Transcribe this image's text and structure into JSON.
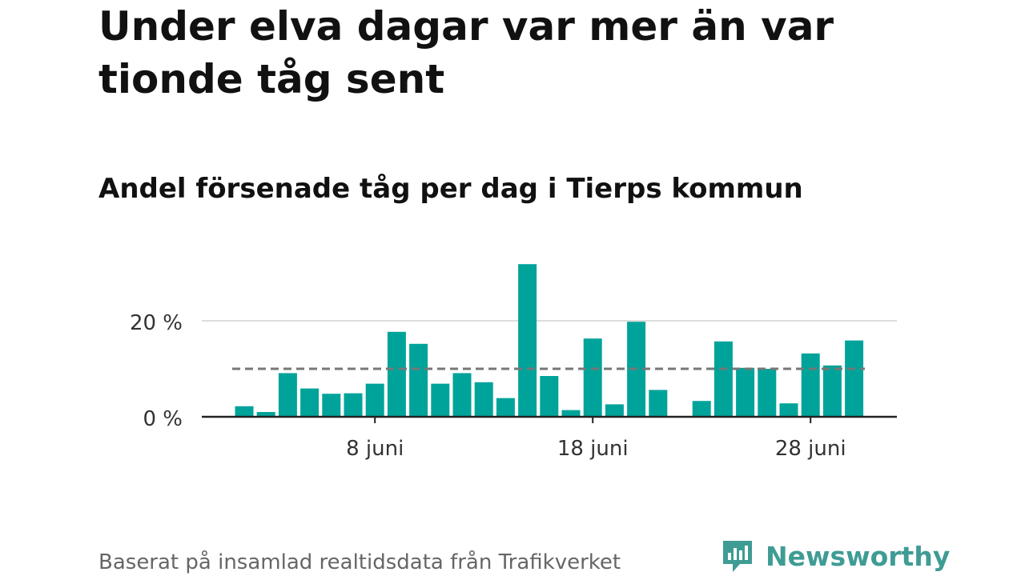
{
  "header": {
    "title": "Under elva dagar var mer än var tionde tåg sent",
    "subtitle": "Andel försenade tåg per dag i Tierps kommun"
  },
  "footer": {
    "note": "Baserat på insamlad realtidsdata från Trafikverket",
    "brand": "Newsworthy"
  },
  "colors": {
    "bar": "#00a39a",
    "reference_line": "#777777",
    "gridline": "#dddddd",
    "axis": "#222222",
    "brand": "#3f9c94"
  },
  "chart_data": {
    "type": "bar",
    "x": [
      "2 juni",
      "3 juni",
      "4 juni",
      "5 juni",
      "6 juni",
      "7 juni",
      "8 juni",
      "9 juni",
      "10 juni",
      "11 juni",
      "12 juni",
      "13 juni",
      "14 juni",
      "15 juni",
      "16 juni",
      "17 juni",
      "18 juni",
      "19 juni",
      "20 juni",
      "21 juni",
      "22 juni",
      "23 juni",
      "24 juni",
      "25 juni",
      "26 juni",
      "27 juni",
      "28 juni",
      "29 juni",
      "30 juni"
    ],
    "values": [
      2.2,
      1.0,
      9.1,
      5.9,
      4.8,
      4.9,
      6.9,
      17.7,
      15.2,
      6.9,
      9.1,
      7.2,
      3.9,
      31.8,
      8.5,
      1.4,
      16.3,
      2.6,
      19.8,
      5.6,
      0,
      3.3,
      15.7,
      10.2,
      10.0,
      2.8,
      13.2,
      10.7,
      15.9
    ],
    "reference_value": 10,
    "yticks": [
      {
        "value": 0,
        "label": "0 %"
      },
      {
        "value": 20,
        "label": "20 %"
      }
    ],
    "xticks": [
      {
        "category": "8 juni",
        "label": "8 juni"
      },
      {
        "category": "18 juni",
        "label": "18 juni"
      },
      {
        "category": "28 juni",
        "label": "28 juni"
      }
    ],
    "ylim": [
      0,
      33
    ],
    "grid": true,
    "legend": "none"
  }
}
